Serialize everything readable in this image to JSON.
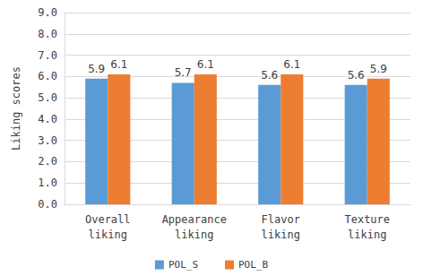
{
  "chart_data": {
    "type": "bar",
    "y_label": "Liking scores",
    "categories": [
      "Overall liking",
      "Appearance liking",
      "Flavor liking",
      "Texture liking"
    ],
    "series": [
      {
        "name": "POL_S",
        "color": "#5b9bd5",
        "values": [
          5.9,
          5.7,
          5.6,
          5.6
        ]
      },
      {
        "name": "POL_B",
        "color": "#ed7d31",
        "values": [
          6.1,
          6.1,
          6.1,
          5.9
        ]
      }
    ],
    "ylim": [
      0,
      9
    ],
    "yticks": [
      {
        "value": 0,
        "label": "0.0"
      },
      {
        "value": 1,
        "label": "1.0"
      },
      {
        "value": 2,
        "label": "2.0"
      },
      {
        "value": 3,
        "label": "3.0"
      },
      {
        "value": 4,
        "label": "4.0"
      },
      {
        "value": 5,
        "label": "5.0"
      },
      {
        "value": 6,
        "label": "6.0"
      },
      {
        "value": 7,
        "label": "7.0"
      },
      {
        "value": 8,
        "label": "8.0"
      },
      {
        "value": 9,
        "label": "9.0"
      }
    ],
    "grid": true,
    "legend": "bottom",
    "data_labels": true
  }
}
